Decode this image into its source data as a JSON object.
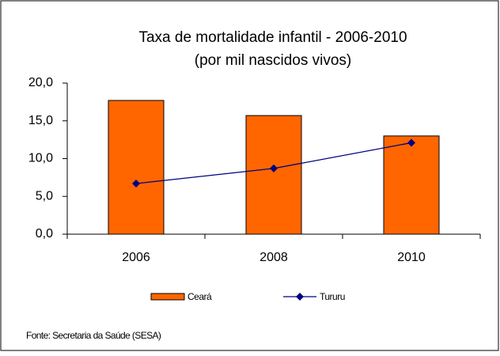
{
  "chart_data": {
    "type": "bar_line",
    "title": "Taxa de mortalidade infantil - 2006-2010",
    "subtitle": "(por mil nascidos vivos)",
    "categories": [
      "2006",
      "2008",
      "2010"
    ],
    "series": [
      {
        "name": "Ceará",
        "type": "bar",
        "color": "#ff6600",
        "values": [
          17.7,
          15.7,
          13.0
        ]
      },
      {
        "name": "Tururu",
        "type": "line",
        "color": "#000080",
        "values": [
          6.7,
          8.7,
          12.1
        ]
      }
    ],
    "ylim": [
      0,
      20
    ],
    "yticks": [
      {
        "value": 0,
        "label": "0,0"
      },
      {
        "value": 5,
        "label": "5,0"
      },
      {
        "value": 10,
        "label": "10,0"
      },
      {
        "value": 15,
        "label": "15,0"
      },
      {
        "value": 20,
        "label": "20,0"
      }
    ],
    "source": "Fonte: Secretaria da Saúde (SESA)"
  }
}
